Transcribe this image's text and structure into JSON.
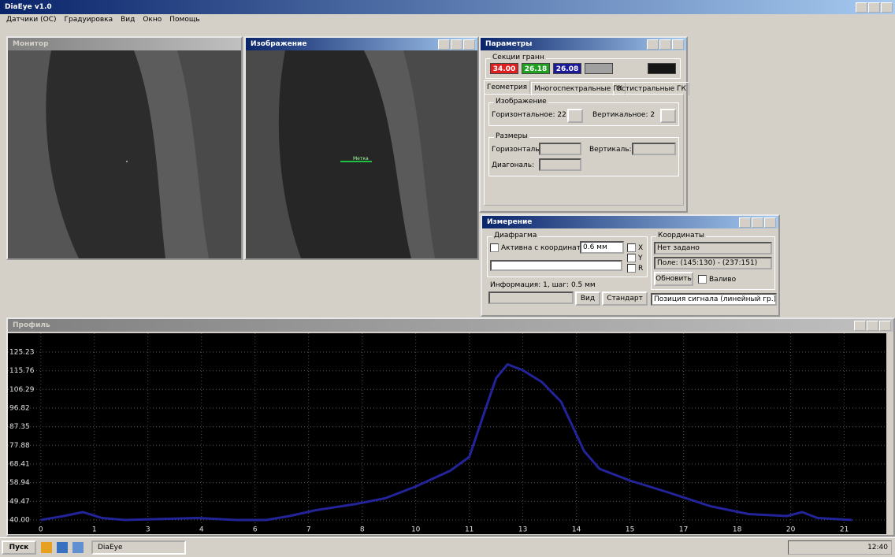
{
  "app": {
    "title": "DiaEye v1.0",
    "menu": [
      "Датчики (ОС)",
      "Градуировка",
      "Вид",
      "Окно",
      "Помощь"
    ]
  },
  "windows": {
    "monitor": {
      "title": "Монитор"
    },
    "image": {
      "title": "Изображение",
      "marker": "Метка"
    },
    "params": {
      "title": "Параметры",
      "section": "Секции гранн",
      "swatches": [
        "34.00",
        "26.18",
        "26.08"
      ],
      "tabs": [
        "Геометрия",
        "Многоспектральные ГК",
        "Остистральные ГК"
      ],
      "image_group": "Изображение",
      "horizontal": "Горизонтальное: 22",
      "vertical": "Вертикальное: 2",
      "size_group": "Размеры",
      "size_labels": [
        "Горизонталь:",
        "Вертикаль:",
        "Диагональ:"
      ]
    },
    "measure": {
      "title": "Измерение",
      "aperture": "Диафрагма",
      "active": "Активна с координатами",
      "size": "0.6 мм",
      "axes": [
        "X",
        "Y",
        "R"
      ],
      "info": "Информация: 1, шаг: 0.5 мм",
      "buttons": [
        "Вид",
        "Стандарт"
      ],
      "coords": "Координаты",
      "not_set": "Нет задано",
      "field": "Поле: (145:130) - (237:151)",
      "update": "Обновить",
      "attach": "Валиво",
      "signal": "Позиция сигнала (линейный гр.)"
    },
    "profile": {
      "title": "Профиль"
    }
  },
  "plot": {
    "type": "line",
    "color": "#23239a",
    "grid": true,
    "x": [
      0,
      0.6,
      1.1,
      1.6,
      2.2,
      4.1,
      5.1,
      5.9,
      6.5,
      7.2,
      8.2,
      9.0,
      9.8,
      10.7,
      11.2,
      11.6,
      11.9,
      12.2,
      12.6,
      13.1,
      13.6,
      14.2,
      14.6,
      15.4,
      16.4,
      17.5,
      18.5,
      19.5,
      19.9,
      20.3,
      21.2
    ],
    "values": [
      40,
      42,
      44,
      41,
      40,
      41,
      40,
      40,
      42,
      45,
      48,
      51,
      57,
      65,
      72,
      95,
      112,
      119,
      116,
      110,
      100,
      75,
      66,
      60,
      54,
      47,
      43,
      42,
      44,
      41,
      40
    ],
    "xlim": [
      -0.86,
      22.1
    ],
    "ylim": [
      32.8,
      134.8
    ],
    "xticks": [
      0,
      {
        "value": 1.4,
        "label": "1"
      },
      {
        "value": 2.8,
        "label": "3"
      },
      {
        "value": 4.2,
        "label": "4"
      },
      {
        "value": 5.6,
        "label": "6"
      },
      7,
      {
        "value": 8.4,
        "label": "8"
      },
      {
        "value": 9.8,
        "label": "10"
      },
      {
        "value": 11.2,
        "label": "11"
      },
      {
        "value": 12.6,
        "label": "13"
      },
      14,
      {
        "value": 15.4,
        "label": "15"
      },
      {
        "value": 16.8,
        "label": "17"
      },
      {
        "value": 18.2,
        "label": "18"
      },
      {
        "value": 19.6,
        "label": "20"
      },
      21
    ],
    "yticks": [
      {
        "value": 40,
        "label": "40.00"
      },
      49.47,
      58.94,
      68.41,
      77.88,
      87.35,
      96.82,
      106.29,
      115.76,
      125.23
    ]
  },
  "taskbar": {
    "start": "Пуск",
    "task": "DiaEye",
    "clock": "12:40"
  }
}
